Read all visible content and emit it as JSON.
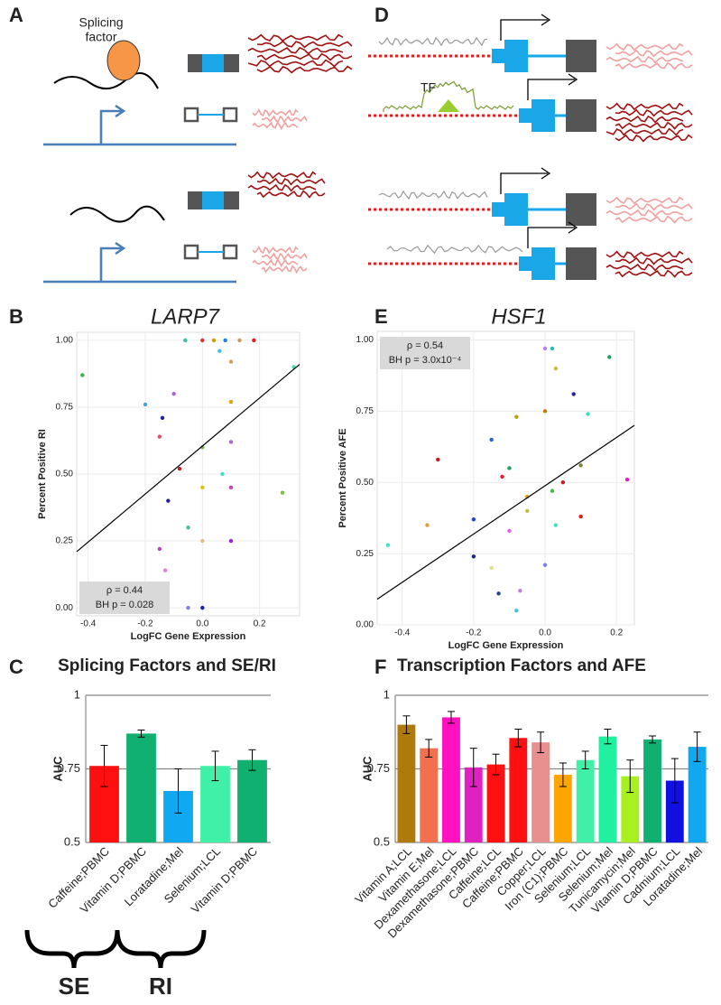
{
  "panel_labels": [
    "A",
    "B",
    "C",
    "D",
    "E",
    "F"
  ],
  "diagram_a": {
    "factor_label": [
      "Splicing",
      "factor"
    ]
  },
  "diagram_d": {
    "tf_label": "TF"
  },
  "chart_data": [
    {
      "type": "scatter",
      "title": "LARP7",
      "x_label": "LogFC Gene Expression",
      "y_label": "Percent Positive RI",
      "xlim": [
        -0.44,
        0.34
      ],
      "ylim": [
        -0.03,
        1.03
      ],
      "xticks": [
        -0.4,
        -0.2,
        {
          "value": 0,
          "label": "0.0"
        },
        0.2
      ],
      "yticks": [
        {
          "value": 0,
          "label": "0.00"
        },
        {
          "value": 0.25,
          "label": "0.25"
        },
        {
          "value": 0.5,
          "label": "0.50"
        },
        {
          "value": 0.75,
          "label": "0.75"
        },
        {
          "value": 1,
          "label": "1.00"
        }
      ],
      "grid": true,
      "annotations": [
        "ρ = 0.44",
        "BH p = 0.028"
      ],
      "annotation_corner": "bottom-left",
      "fit_line": {
        "x": [
          -0.44,
          0.34
        ],
        "y": [
          0.21,
          0.91
        ]
      },
      "x": [
        -0.42,
        0.32,
        -0.06,
        0.0,
        0.04,
        0.08,
        0.13,
        0.18,
        0.06,
        0.1,
        -0.2,
        -0.14,
        -0.1,
        0.1,
        0.28,
        -0.15,
        -0.08,
        0.0,
        0.07,
        -0.12,
        0.0,
        0.1,
        -0.05,
        -0.15,
        0.0,
        0.1,
        -0.13,
        -0.05,
        0.0,
        0.1
      ],
      "y": [
        0.87,
        0.9,
        1.0,
        1.0,
        1.0,
        1.0,
        1.0,
        1.0,
        0.96,
        0.92,
        0.76,
        0.71,
        0.8,
        0.77,
        0.43,
        0.64,
        0.52,
        0.6,
        0.5,
        0.4,
        0.45,
        0.45,
        0.3,
        0.22,
        0.25,
        0.25,
        0.14,
        0.0,
        0.0,
        0.62
      ],
      "colors": [
        "#40b040",
        "#40e0a0",
        "#40c0a0",
        "#e03030",
        "#d0a000",
        "#2080e0",
        "#c0a060",
        "#e02020",
        "#40c0e0",
        "#d0a060",
        "#40a0e0",
        "#2020a0",
        "#b060e0",
        "#e0a000",
        "#80c040",
        "#e05060",
        "#c02020",
        "#80b040",
        "#40e0c0",
        "#2020a0",
        "#e0c000",
        "#c040c0",
        "#40c0a0",
        "#c040c0",
        "#e0c080",
        "#a020e0",
        "#e080e0",
        "#8080e0",
        "#2020a0",
        "#b060e0"
      ]
    },
    {
      "type": "scatter",
      "title": "HSF1",
      "x_label": "LogFC Gene Expression",
      "y_label": "Percent Positive AFE",
      "xlim": [
        -0.47,
        0.25
      ],
      "ylim": [
        0,
        1.03
      ],
      "xticks": [
        -0.4,
        -0.2,
        {
          "value": 0,
          "label": "0.0"
        },
        0.2
      ],
      "yticks": [
        {
          "value": 0,
          "label": "0.00"
        },
        {
          "value": 0.25,
          "label": "0.25"
        },
        {
          "value": 0.5,
          "label": "0.50"
        },
        {
          "value": 0.75,
          "label": "0.75"
        },
        {
          "value": 1,
          "label": "1.00"
        }
      ],
      "grid": true,
      "annotations": [
        "ρ = 0.54",
        "BH p = 3.0x10⁻⁴"
      ],
      "annotation_corner": "top-left",
      "fit_line": {
        "x": [
          -0.47,
          0.25
        ],
        "y": [
          0.09,
          0.7
        ]
      },
      "x": [
        -0.44,
        0.23,
        0.18,
        0.02,
        0.0,
        0.03,
        0.08,
        0.12,
        -0.08,
        0.0,
        -0.3,
        -0.15,
        -0.1,
        0.1,
        -0.12,
        0.05,
        -0.05,
        0.02,
        -0.2,
        -0.33,
        -0.05,
        0.1,
        -0.1,
        0.03,
        -0.2,
        -0.15,
        -0.13,
        -0.07,
        -0.08,
        0.0
      ],
      "y": [
        0.28,
        0.51,
        0.94,
        0.97,
        0.97,
        0.9,
        0.81,
        0.74,
        0.73,
        0.75,
        0.58,
        0.65,
        0.55,
        0.56,
        0.52,
        0.5,
        0.45,
        0.47,
        0.37,
        0.35,
        0.4,
        0.38,
        0.33,
        0.35,
        0.24,
        0.2,
        0.11,
        0.12,
        0.05,
        0.21
      ],
      "colors": [
        "#40e0c0",
        "#e020c0",
        "#20a060",
        "#20c0c0",
        "#c080e0",
        "#c0c040",
        "#2020a0",
        "#40e0c0",
        "#c0a000",
        "#c08000",
        "#c02020",
        "#2060e0",
        "#20a060",
        "#808040",
        "#e02020",
        "#c02020",
        "#e0a000",
        "#40c040",
        "#2040e0",
        "#e0a040",
        "#c0c040",
        "#e02020",
        "#e060e0",
        "#40e0c0",
        "#2020a0",
        "#e0e080",
        "#2040a0",
        "#c080e0",
        "#40c0e0",
        "#8080e0"
      ]
    },
    {
      "type": "bar",
      "title": "Splicing Factors and SE/RI",
      "y_label": "AUC",
      "ylim": [
        0.5,
        1
      ],
      "yticks": [
        0.5,
        0.75,
        1
      ],
      "grid": true,
      "categories": [
        "Caffeine;PBMC",
        "Vitamin D;PBMC",
        "Loratadine;Mel",
        "Selenium;LCL",
        "Vitamin D;PBMC"
      ],
      "values": [
        0.76,
        0.87,
        0.675,
        0.76,
        0.78
      ],
      "errors": [
        0.07,
        0.012,
        0.075,
        0.05,
        0.035
      ],
      "colors": [
        "#ff1010",
        "#10b070",
        "#10a8f0",
        "#40f0a8",
        "#10b070"
      ],
      "group_labels": [
        "SE",
        "RI"
      ]
    },
    {
      "type": "bar",
      "title": "Transcription Factors and AFE",
      "y_label": "AUC",
      "ylim": [
        0.5,
        1
      ],
      "yticks": [
        0.5,
        0.75,
        1
      ],
      "grid": true,
      "categories": [
        "Vitamin A;LCL",
        "Vitamin E;Mel",
        "Dexamethasone;LCL",
        "Dexamethasone;PBMC",
        "Caffeine;LCL",
        "Caffeine;PBMC",
        "Copper;LCL",
        "Iron (C1);PBMC",
        "Selenium;LCL",
        "Selenium;Mel",
        "Tunicamycin;Mel",
        "Vitamin D;PBMC",
        "Cadmium;LCL",
        "Loratadine;Mel"
      ],
      "values": [
        0.9,
        0.82,
        0.925,
        0.755,
        0.765,
        0.855,
        0.84,
        0.73,
        0.78,
        0.86,
        0.725,
        0.85,
        0.71,
        0.825
      ],
      "errors": [
        0.03,
        0.03,
        0.02,
        0.065,
        0.035,
        0.03,
        0.035,
        0.04,
        0.03,
        0.025,
        0.055,
        0.012,
        0.075,
        0.05
      ],
      "colors": [
        "#b07a0a",
        "#f07050",
        "#ff10c0",
        "#e020c0",
        "#ff1010",
        "#ff1010",
        "#e89090",
        "#ffa500",
        "#40f0a8",
        "#20f0a0",
        "#a8f020",
        "#10b070",
        "#1010e0",
        "#10a8f0"
      ]
    }
  ]
}
